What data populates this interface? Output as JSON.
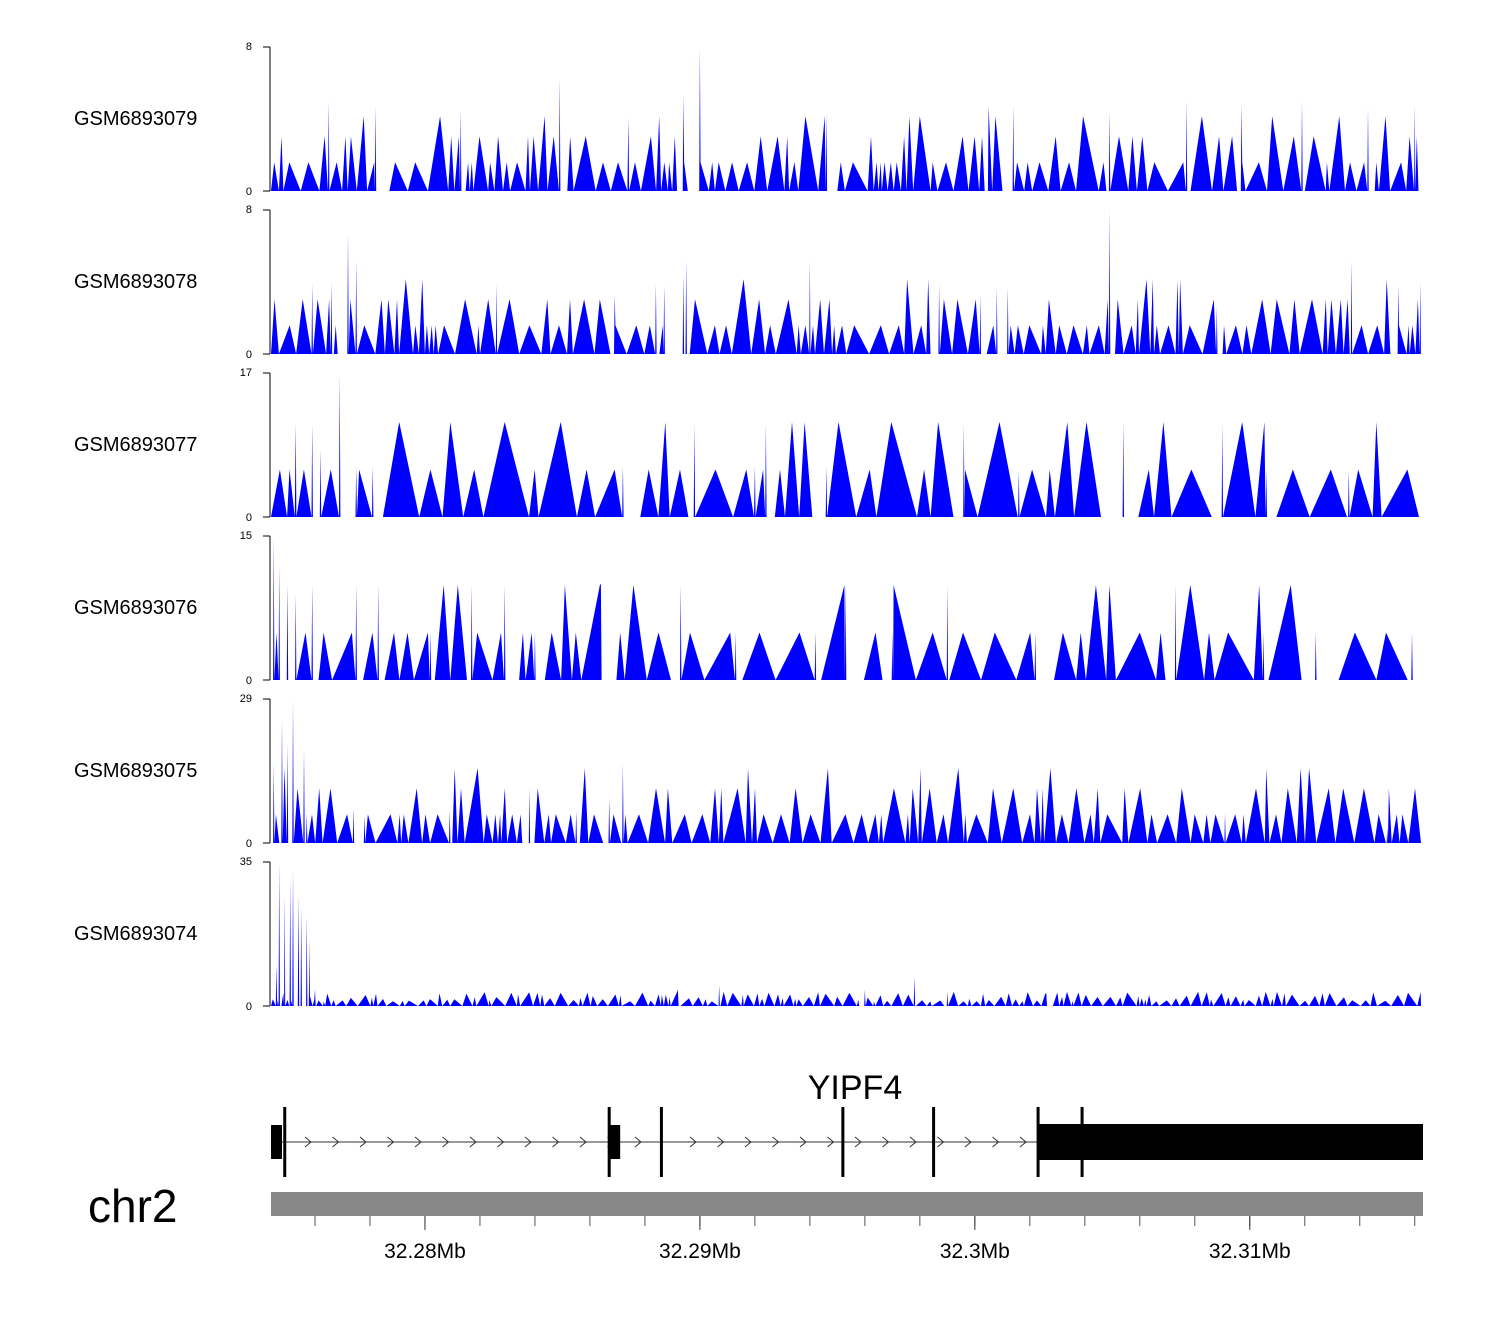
{
  "chart_data": {
    "type": "area",
    "colors": {
      "signal": "#0000ff",
      "gene": "#000000",
      "ideogram": "#888888"
    },
    "x_range_mb": [
      32.2744,
      32.3163
    ],
    "tracks": [
      {
        "name": "GSM6893079",
        "ymax": 8,
        "ymin_label": "0",
        "ymax_label": "8",
        "seed": 11,
        "pattern": "dense",
        "peaks": [
          [
            32.29,
            8
          ],
          [
            32.2894,
            5.3
          ],
          [
            32.2946,
            4.3
          ],
          [
            32.2849,
            6.3
          ],
          [
            32.2765,
            5
          ],
          [
            32.2782,
            4.7
          ],
          [
            32.2813,
            4.5
          ],
          [
            32.3005,
            4.7
          ],
          [
            32.3014,
            4.8
          ],
          [
            32.3097,
            4.8
          ],
          [
            32.3077,
            5
          ],
          [
            32.3119,
            5
          ],
          [
            32.3049,
            4.4
          ],
          [
            32.3143,
            4.6
          ],
          [
            32.316,
            4.8
          ],
          [
            32.2874,
            4.1
          ]
        ]
      },
      {
        "name": "GSM6893078",
        "ymax": 8,
        "ymin_label": "0",
        "ymax_label": "8",
        "seed": 23,
        "pattern": "dense",
        "peaks": [
          [
            32.2772,
            6.7
          ],
          [
            32.2766,
            4
          ],
          [
            32.2759,
            3.9
          ],
          [
            32.2775,
            5.2
          ],
          [
            32.2826,
            3.9
          ],
          [
            32.2869,
            3.3
          ],
          [
            32.2884,
            3.9
          ],
          [
            32.2895,
            5.2
          ],
          [
            32.2894,
            4.4
          ],
          [
            32.2887,
            3.8
          ],
          [
            32.294,
            5.2
          ],
          [
            32.2987,
            3.9
          ],
          [
            32.3008,
            3.7
          ],
          [
            32.3049,
            8
          ],
          [
            32.3012,
            3.7
          ],
          [
            32.3002,
            3.3
          ],
          [
            32.3137,
            5.2
          ],
          [
            32.3154,
            3.8
          ],
          [
            32.3162,
            4
          ],
          [
            32.3088,
            2.6
          ]
        ]
      },
      {
        "name": "GSM6893077",
        "ymax": 17,
        "ymin_label": "0",
        "ymax_label": "17",
        "seed": 37,
        "pattern": "sparse",
        "peaks": [
          [
            32.2769,
            17
          ],
          [
            32.2753,
            11
          ],
          [
            32.2759,
            11
          ],
          [
            32.2898,
            11
          ],
          [
            32.2924,
            11
          ],
          [
            32.2996,
            11
          ],
          [
            32.309,
            11
          ],
          [
            32.2762,
            8
          ],
          [
            32.2775,
            6
          ],
          [
            32.2781,
            6
          ],
          [
            32.2872,
            6
          ],
          [
            32.292,
            6
          ],
          [
            32.2946,
            6
          ],
          [
            32.3016,
            5.5
          ],
          [
            32.3054,
            5.5
          ],
          [
            32.3106,
            5.5
          ],
          [
            32.3136,
            5.5
          ]
        ]
      },
      {
        "name": "GSM6893076",
        "ymax": 15,
        "ymin_label": "0",
        "ymax_label": "15",
        "seed": 53,
        "pattern": "sparse",
        "peaks": [
          [
            32.2745,
            15
          ],
          [
            32.2747,
            12
          ],
          [
            32.275,
            10
          ],
          [
            32.2753,
            9
          ],
          [
            32.2759,
            10
          ],
          [
            32.2775,
            10
          ],
          [
            32.2783,
            10
          ],
          [
            32.2817,
            10
          ],
          [
            32.2829,
            10
          ],
          [
            32.2864,
            10
          ],
          [
            32.2893,
            10
          ],
          [
            32.2953,
            10
          ],
          [
            32.299,
            10
          ],
          [
            32.3073,
            10
          ],
          [
            32.2802,
            5
          ],
          [
            32.284,
            5
          ],
          [
            32.2913,
            5
          ],
          [
            32.2942,
            5
          ],
          [
            32.297,
            5
          ],
          [
            32.3022,
            5
          ],
          [
            32.3105,
            5
          ],
          [
            32.3124,
            5
          ],
          [
            32.3159,
            5
          ]
        ]
      },
      {
        "name": "GSM6893075",
        "ymax": 29,
        "ymin_label": "0",
        "ymax_label": "29",
        "seed": 71,
        "pattern": "dense",
        "peaks": [
          [
            32.2752,
            29
          ],
          [
            32.2748,
            25
          ],
          [
            32.2745,
            16
          ],
          [
            32.275,
            20
          ],
          [
            32.2756,
            19
          ],
          [
            32.2872,
            16
          ],
          [
            32.2867,
            9
          ],
          [
            32.2838,
            7
          ],
          [
            32.2809,
            6.5
          ],
          [
            32.2855,
            6.5
          ],
          [
            32.2778,
            5.5
          ],
          [
            32.2757,
            6
          ],
          [
            32.2774,
            7
          ],
          [
            32.3091,
            6
          ],
          [
            32.315,
            3
          ]
        ]
      },
      {
        "name": "GSM6893074",
        "ymax": 35,
        "ymin_label": "0",
        "ymax_label": "35",
        "seed": 97,
        "pattern": "tiny",
        "peaks": [
          [
            32.2747,
            35
          ],
          [
            32.2749,
            27
          ],
          [
            32.2751,
            31
          ],
          [
            32.2752,
            33
          ],
          [
            32.2754,
            27
          ],
          [
            32.2755,
            24
          ],
          [
            32.2757,
            22
          ],
          [
            32.2758,
            16
          ],
          [
            32.276,
            4
          ],
          [
            32.2746,
            10
          ],
          [
            32.2978,
            7
          ],
          [
            32.296,
            4
          ],
          [
            32.2907,
            5
          ],
          [
            32.2892,
            4
          ],
          [
            32.299,
            3.5
          ],
          [
            32.3026,
            3
          ]
        ]
      }
    ],
    "gene": {
      "name": "YIPF4",
      "strand": "+",
      "exons": [
        [
          32.2744,
          32.2748,
          "small"
        ],
        [
          32.2748,
          32.2749,
          "thin"
        ],
        [
          32.2867,
          32.2871,
          "small"
        ],
        [
          32.2886,
          32.2888,
          "thin"
        ],
        [
          32.2952,
          32.2953,
          "thin"
        ],
        [
          32.2985,
          32.2986,
          "thin"
        ],
        [
          32.3023,
          32.3163,
          "big"
        ]
      ],
      "thin_marks": [
        32.2749,
        32.2867,
        32.2886,
        32.2952,
        32.2985,
        32.3023,
        32.3039
      ]
    },
    "axis": {
      "chromosome": "chr2",
      "ticks": [
        {
          "value": 32.28,
          "label": "32.28Mb"
        },
        {
          "value": 32.29,
          "label": "32.29Mb"
        },
        {
          "value": 32.3,
          "label": "32.3Mb"
        },
        {
          "value": 32.31,
          "label": "32.31Mb"
        }
      ],
      "minor_step": 0.002
    }
  }
}
